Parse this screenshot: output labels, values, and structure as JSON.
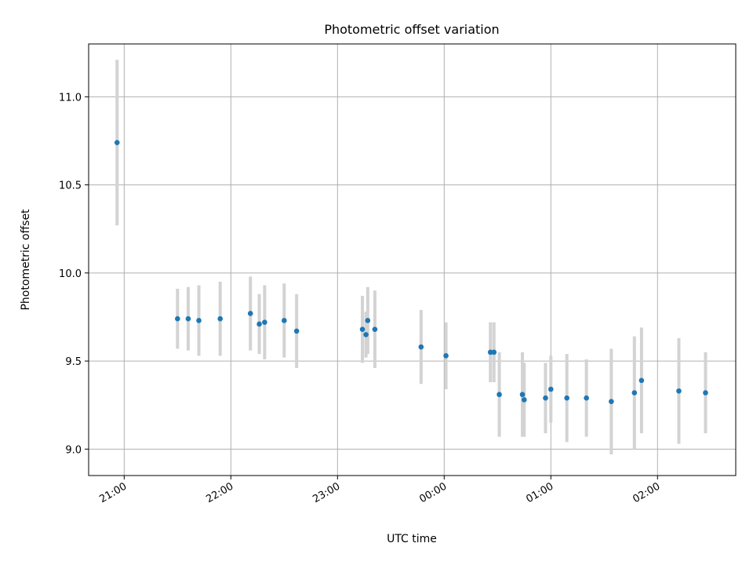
{
  "chart_data": {
    "type": "scatter",
    "title": "Photometric offset variation",
    "xlabel": "UTC time",
    "ylabel": "Photometric offset",
    "x_ticks": [
      "21:00",
      "22:00",
      "23:00",
      "00:00",
      "01:00",
      "02:00"
    ],
    "y_ticks": [
      "9.0",
      "9.5",
      "10.0",
      "10.5",
      "11.0"
    ],
    "xlim": [
      "20:40",
      "02:44"
    ],
    "ylim": [
      8.85,
      11.3
    ],
    "grid": true,
    "colors": {
      "point": "#1f77b4",
      "errorbar": "#d3d3d3",
      "grid": "#b0b0b0"
    },
    "series": [
      {
        "points": [
          {
            "x": "20:56",
            "y": 10.74,
            "err": 0.47
          },
          {
            "x": "21:30",
            "y": 9.74,
            "err": 0.17
          },
          {
            "x": "21:36",
            "y": 9.74,
            "err": 0.18
          },
          {
            "x": "21:42",
            "y": 9.73,
            "err": 0.2
          },
          {
            "x": "21:54",
            "y": 9.74,
            "err": 0.21
          },
          {
            "x": "22:11",
            "y": 9.77,
            "err": 0.21
          },
          {
            "x": "22:16",
            "y": 9.71,
            "err": 0.17
          },
          {
            "x": "22:19",
            "y": 9.72,
            "err": 0.21
          },
          {
            "x": "22:30",
            "y": 9.73,
            "err": 0.21
          },
          {
            "x": "22:37",
            "y": 9.67,
            "err": 0.21
          },
          {
            "x": "23:14",
            "y": 9.68,
            "err": 0.19
          },
          {
            "x": "23:16",
            "y": 9.65,
            "err": 0.13
          },
          {
            "x": "23:17",
            "y": 9.73,
            "err": 0.19
          },
          {
            "x": "23:21",
            "y": 9.68,
            "err": 0.22
          },
          {
            "x": "23:47",
            "y": 9.58,
            "err": 0.21
          },
          {
            "x": "00:01",
            "y": 9.53,
            "err": 0.19
          },
          {
            "x": "00:26",
            "y": 9.55,
            "err": 0.17
          },
          {
            "x": "00:28",
            "y": 9.55,
            "err": 0.17
          },
          {
            "x": "00:31",
            "y": 9.31,
            "err": 0.24
          },
          {
            "x": "00:44",
            "y": 9.31,
            "err": 0.24
          },
          {
            "x": "00:45",
            "y": 9.28,
            "err": 0.21
          },
          {
            "x": "00:57",
            "y": 9.29,
            "err": 0.2
          },
          {
            "x": "01:00",
            "y": 9.34,
            "err": 0.19
          },
          {
            "x": "01:09",
            "y": 9.29,
            "err": 0.25
          },
          {
            "x": "01:20",
            "y": 9.29,
            "err": 0.22
          },
          {
            "x": "01:34",
            "y": 9.27,
            "err": 0.3
          },
          {
            "x": "01:47",
            "y": 9.32,
            "err": 0.32
          },
          {
            "x": "01:51",
            "y": 9.39,
            "err": 0.3
          },
          {
            "x": "02:12",
            "y": 9.33,
            "err": 0.3
          },
          {
            "x": "02:27",
            "y": 9.32,
            "err": 0.23
          }
        ]
      }
    ]
  }
}
